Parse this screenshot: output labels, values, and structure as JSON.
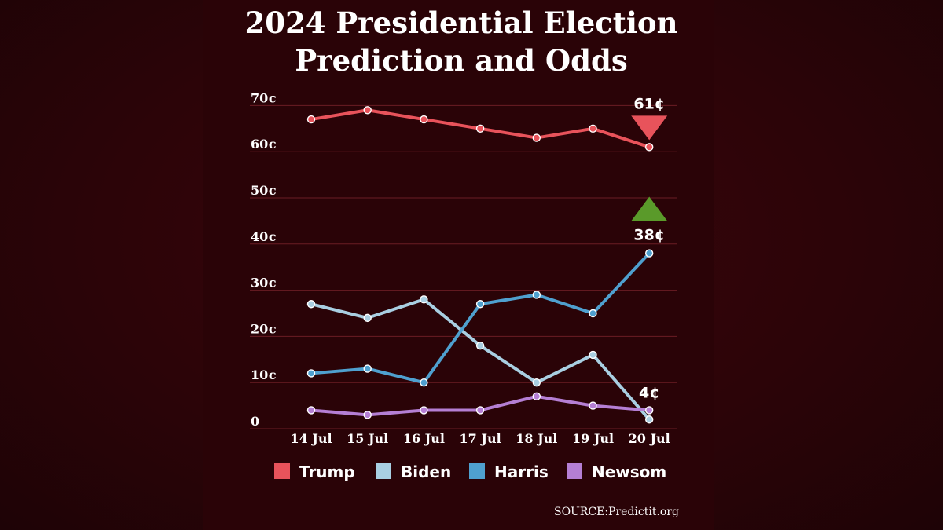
{
  "chart_data": {
    "type": "line",
    "title_lines": [
      "2024 Presidential Election",
      "Prediction and Odds"
    ],
    "categories": [
      "14 Jul",
      "15 Jul",
      "16 Jul",
      "17 Jul",
      "18 Jul",
      "19 Jul",
      "20 Jul"
    ],
    "y_ticks": [
      "0",
      "10¢",
      "20¢",
      "30¢",
      "40¢",
      "50¢",
      "60¢",
      "70¢"
    ],
    "ylim": [
      0,
      70
    ],
    "grid": true,
    "legend_position": "bottom",
    "series": [
      {
        "name": "Trump",
        "color": "#e8535b",
        "values": [
          67,
          69,
          67,
          65,
          63,
          65,
          61
        ]
      },
      {
        "name": "Biden",
        "color": "#a9cfe2",
        "values": [
          27,
          24,
          28,
          18,
          10,
          16,
          2
        ]
      },
      {
        "name": "Harris",
        "color": "#4fa0cf",
        "values": [
          12,
          13,
          10,
          27,
          29,
          25,
          38
        ]
      },
      {
        "name": "Newsom",
        "color": "#b57fd4",
        "values": [
          4,
          3,
          4,
          4,
          7,
          5,
          4
        ]
      }
    ],
    "annotations": [
      {
        "text": "61¢",
        "series": "Trump",
        "trend": "down",
        "color": "#e8535b"
      },
      {
        "text": "38¢",
        "series": "Harris",
        "trend": "up",
        "color": "#5a9a2a"
      },
      {
        "text": "4¢",
        "series": "Newsom"
      }
    ],
    "source": "SOURCE:Predictit.org"
  }
}
